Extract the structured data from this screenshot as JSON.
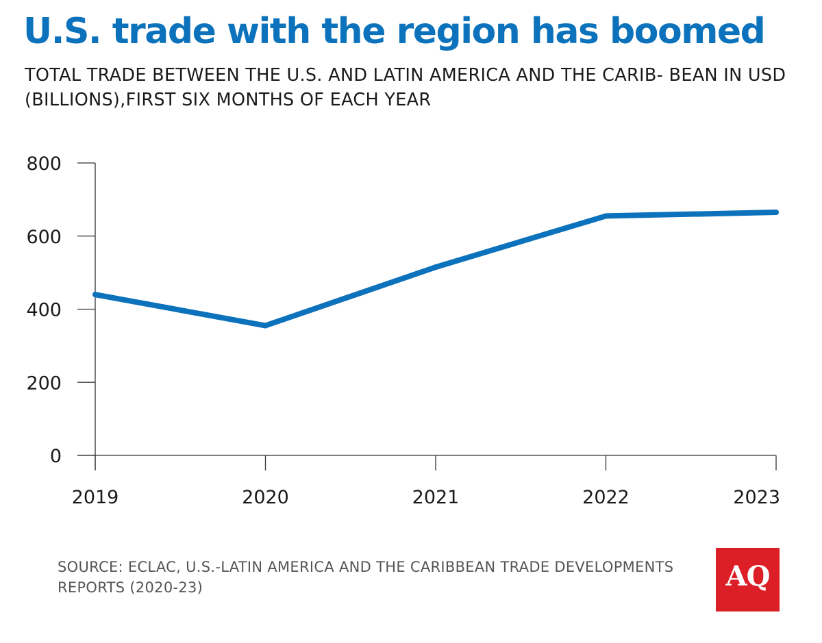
{
  "header": {
    "title": "U.S. trade with the region has boomed",
    "subtitle": "TOTAL TRADE BETWEEN THE U.S. AND LATIN AMERICA AND THE CARIB- BEAN IN USD (BILLIONS),FIRST SIX MONTHS OF EACH YEAR"
  },
  "chart_data": {
    "type": "line",
    "title": "U.S. trade with the region has boomed",
    "subtitle": "TOTAL TRADE BETWEEN THE U.S. AND LATIN AMERICA AND THE CARIB- BEAN IN USD (BILLIONS),FIRST SIX MONTHS OF EACH YEAR",
    "xlabel": "",
    "ylabel": "",
    "categories": [
      "2019",
      "2020",
      "2021",
      "2022",
      "2023"
    ],
    "series": [
      {
        "values": [
          440,
          355,
          515,
          655,
          665
        ],
        "color": "#0b72bb"
      }
    ],
    "ylim": [
      0,
      800
    ],
    "yticks": [
      0,
      200,
      400,
      600,
      800
    ],
    "grid": false,
    "legend": "none"
  },
  "footer": {
    "source": "SOURCE: ECLAC, U.S.-LATIN AMERICA AND THE CARIBBEAN TRADE DEVELOPMENTS REPORTS (2020-23)",
    "logo_text": "AQ",
    "logo_color": "#dc1f26"
  }
}
